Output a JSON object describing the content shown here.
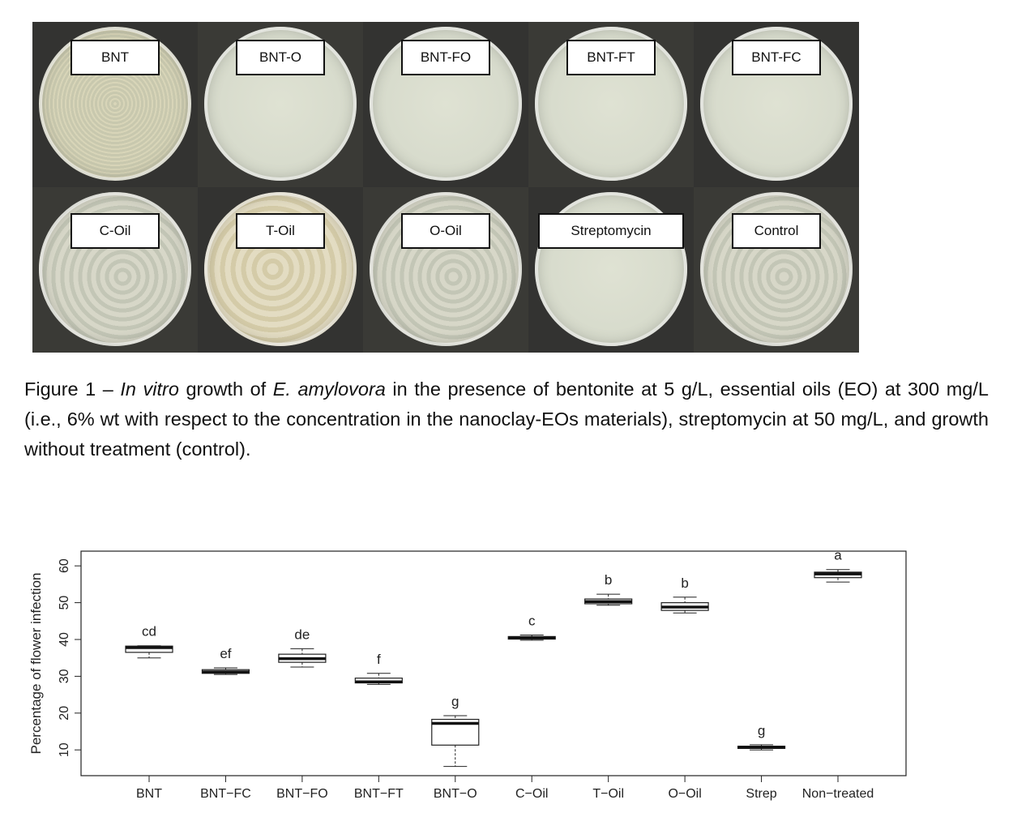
{
  "photo_panel": {
    "dishes": [
      {
        "label": "BNT",
        "style": "speckled"
      },
      {
        "label": "BNT-O",
        "style": "clear"
      },
      {
        "label": "BNT-FO",
        "style": "clear"
      },
      {
        "label": "BNT-FT",
        "style": "clear"
      },
      {
        "label": "BNT-FC",
        "style": "clear"
      },
      {
        "label": "C-Oil",
        "style": "swirl"
      },
      {
        "label": "T-Oil",
        "style": "warm"
      },
      {
        "label": "O-Oil",
        "style": "swirl"
      },
      {
        "label": "Streptomycin",
        "style": "clear"
      },
      {
        "label": "Control",
        "style": "swirl"
      }
    ]
  },
  "caption": {
    "prefix": "Figure 1 – ",
    "italic1": "In vitro",
    "mid1": " growth of ",
    "italic2": "E. amylovora",
    "rest": " in the presence of bentonite at 5 g/L, essential oils (EO) at 300 mg/L (i.e., 6% wt with respect to the concentration in the nanoclay-EOs materials), streptomycin at 50 mg/L, and growth without treatment (control)."
  },
  "chart_data": {
    "type": "box",
    "title": "",
    "xlabel": "",
    "ylabel": "Percentage of flower infection",
    "ylim": [
      3,
      64
    ],
    "yticks": [
      10,
      20,
      30,
      40,
      50,
      60
    ],
    "categories": [
      "BNT",
      "BNT−FC",
      "BNT−FO",
      "BNT−FT",
      "BNT−O",
      "C−Oil",
      "T−Oil",
      "O−Oil",
      "Strep",
      "Non−treated"
    ],
    "boxes": [
      {
        "min": 35.0,
        "q1": 36.5,
        "median": 37.8,
        "q3": 38.2,
        "max": 38.3,
        "letter": "cd"
      },
      {
        "min": 30.5,
        "q1": 30.8,
        "median": 31.2,
        "q3": 31.8,
        "max": 32.3,
        "letter": "ef"
      },
      {
        "min": 32.5,
        "q1": 33.8,
        "median": 34.8,
        "q3": 36.0,
        "max": 37.5,
        "letter": "de"
      },
      {
        "min": 27.8,
        "q1": 28.2,
        "median": 28.5,
        "q3": 29.5,
        "max": 30.8,
        "letter": "f"
      },
      {
        "min": 5.5,
        "q1": 11.3,
        "median": 17.2,
        "q3": 18.3,
        "max": 19.3,
        "letter": "g"
      },
      {
        "min": 39.8,
        "q1": 40.1,
        "median": 40.5,
        "q3": 40.8,
        "max": 41.2,
        "letter": "c"
      },
      {
        "min": 49.3,
        "q1": 49.7,
        "median": 50.3,
        "q3": 51.0,
        "max": 52.3,
        "letter": "b"
      },
      {
        "min": 47.2,
        "q1": 47.9,
        "median": 48.8,
        "q3": 50.0,
        "max": 51.5,
        "letter": "b"
      },
      {
        "min": 10.0,
        "q1": 10.4,
        "median": 10.7,
        "q3": 11.0,
        "max": 11.4,
        "letter": "g"
      },
      {
        "min": 55.6,
        "q1": 56.8,
        "median": 57.8,
        "q3": 58.3,
        "max": 59.0,
        "letter": "a"
      }
    ]
  }
}
